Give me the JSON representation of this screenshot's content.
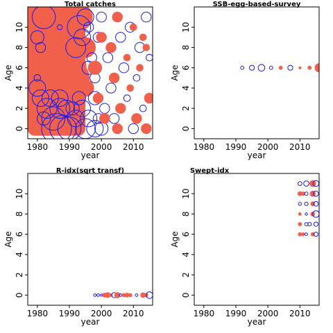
{
  "colors": {
    "positive": "#f0604a",
    "negative": "#1a1aee",
    "axis": "#000000"
  },
  "chart_data": [
    {
      "type": "bubble",
      "title": "Total catches",
      "xlabel": "year",
      "ylabel": "Age",
      "xlim": [
        1977,
        2016
      ],
      "ylim": [
        -1,
        12
      ],
      "xticks": [
        1980,
        1990,
        2000,
        2010
      ],
      "yticks": [
        0,
        2,
        4,
        6,
        8,
        10
      ],
      "points": [
        {
          "x": 1985,
          "y": 11,
          "s": 12,
          "sign": "pos"
        },
        {
          "x": 1989,
          "y": 11,
          "s": 12,
          "sign": "pos"
        },
        {
          "x": 1993,
          "y": 11,
          "s": 8,
          "sign": "pos"
        },
        {
          "x": 1981,
          "y": 7,
          "s": 12,
          "sign": "pos"
        },
        {
          "x": 1985,
          "y": 6,
          "s": 12,
          "sign": "pos"
        },
        {
          "x": 1989,
          "y": 6,
          "s": 12,
          "sign": "pos"
        },
        {
          "x": 1983,
          "y": 3,
          "s": 12,
          "sign": "pos"
        },
        {
          "x": 1987,
          "y": 4,
          "s": 12,
          "sign": "pos"
        },
        {
          "x": 1991,
          "y": 5,
          "s": 10,
          "sign": "pos"
        },
        {
          "x": 1995,
          "y": 8,
          "s": 6,
          "sign": "pos"
        },
        {
          "x": 1995,
          "y": 4,
          "s": 5,
          "sign": "pos"
        },
        {
          "x": 1982,
          "y": 11,
          "s": 7,
          "sign": "neg"
        },
        {
          "x": 1980,
          "y": 4,
          "s": 5,
          "sign": "neg"
        },
        {
          "x": 1980,
          "y": 9,
          "s": 4,
          "sign": "neg"
        },
        {
          "x": 1981,
          "y": 8,
          "s": 3,
          "sign": "neg"
        },
        {
          "x": 1980,
          "y": 5,
          "s": 2,
          "sign": "neg"
        },
        {
          "x": 1987,
          "y": 10,
          "s": 1.5,
          "sign": "neg"
        },
        {
          "x": 1981,
          "y": 3,
          "s": 5,
          "sign": "neg"
        },
        {
          "x": 1983,
          "y": 2,
          "s": 6,
          "sign": "neg"
        },
        {
          "x": 1985,
          "y": 1,
          "s": 7,
          "sign": "neg"
        },
        {
          "x": 1987,
          "y": 3,
          "s": 5,
          "sign": "neg"
        },
        {
          "x": 1982,
          "y": 1,
          "s": 4,
          "sign": "neg"
        },
        {
          "x": 1984,
          "y": 3,
          "s": 5,
          "sign": "neg"
        },
        {
          "x": 1986,
          "y": 0,
          "s": 9,
          "sign": "neg"
        },
        {
          "x": 1988,
          "y": 0,
          "s": 8,
          "sign": "neg"
        },
        {
          "x": 1990,
          "y": 0,
          "s": 7,
          "sign": "neg"
        },
        {
          "x": 1987,
          "y": 2,
          "s": 6,
          "sign": "neg"
        },
        {
          "x": 1989,
          "y": 2,
          "s": 5,
          "sign": "neg"
        },
        {
          "x": 1991,
          "y": 2,
          "s": 4,
          "sign": "neg"
        },
        {
          "x": 1992,
          "y": 1,
          "s": 5,
          "sign": "neg"
        },
        {
          "x": 1993,
          "y": 3,
          "s": 4,
          "sign": "neg"
        },
        {
          "x": 1994,
          "y": 2,
          "s": 5,
          "sign": "neg"
        },
        {
          "x": 1995,
          "y": 0,
          "s": 6,
          "sign": "neg"
        },
        {
          "x": 1996,
          "y": 1,
          "s": 5,
          "sign": "neg"
        },
        {
          "x": 1998,
          "y": 0,
          "s": 5,
          "sign": "neg"
        },
        {
          "x": 1992,
          "y": 8,
          "s": 6,
          "sign": "neg"
        },
        {
          "x": 1993,
          "y": 10,
          "s": 7,
          "sign": "neg"
        },
        {
          "x": 1994,
          "y": 9,
          "s": 5,
          "sign": "neg"
        },
        {
          "x": 1995,
          "y": 11,
          "s": 5,
          "sign": "neg"
        },
        {
          "x": 1996,
          "y": 6,
          "s": 4,
          "sign": "neg"
        },
        {
          "x": 1996,
          "y": 10,
          "s": 3,
          "sign": "neg"
        },
        {
          "x": 1997,
          "y": 7,
          "s": 3,
          "sign": "neg"
        },
        {
          "x": 1998,
          "y": 3,
          "s": 4,
          "sign": "neg"
        },
        {
          "x": 1998,
          "y": 5,
          "s": 3,
          "sign": "neg"
        },
        {
          "x": 1999,
          "y": 1,
          "s": 3,
          "sign": "neg"
        },
        {
          "x": 1999,
          "y": 9,
          "s": 3,
          "sign": "neg"
        },
        {
          "x": 2000,
          "y": 11,
          "s": 3,
          "sign": "neg"
        },
        {
          "x": 2000,
          "y": 0,
          "s": 4,
          "sign": "neg"
        },
        {
          "x": 2001,
          "y": 2,
          "s": 3,
          "sign": "neg"
        },
        {
          "x": 2002,
          "y": 7,
          "s": 3,
          "sign": "neg"
        },
        {
          "x": 2003,
          "y": 4,
          "s": 3,
          "sign": "neg"
        },
        {
          "x": 2004,
          "y": 1,
          "s": 3,
          "sign": "neg"
        },
        {
          "x": 2006,
          "y": 9,
          "s": 3,
          "sign": "neg"
        },
        {
          "x": 2007,
          "y": 6,
          "s": 3,
          "sign": "neg"
        },
        {
          "x": 2008,
          "y": 3,
          "s": 2,
          "sign": "neg"
        },
        {
          "x": 2009,
          "y": 10,
          "s": 3,
          "sign": "neg"
        },
        {
          "x": 2010,
          "y": 0,
          "s": 3,
          "sign": "neg"
        },
        {
          "x": 2011,
          "y": 5,
          "s": 2,
          "sign": "neg"
        },
        {
          "x": 2012,
          "y": 8,
          "s": 3,
          "sign": "neg"
        },
        {
          "x": 2013,
          "y": 2,
          "s": 2,
          "sign": "neg"
        },
        {
          "x": 2014,
          "y": 11,
          "s": 3,
          "sign": "neg"
        },
        {
          "x": 2015,
          "y": 7,
          "s": 2,
          "sign": "neg"
        },
        {
          "x": 1998,
          "y": 6,
          "s": 4,
          "sign": "pos"
        },
        {
          "x": 1999,
          "y": 3,
          "s": 3,
          "sign": "pos"
        },
        {
          "x": 2000,
          "y": 9,
          "s": 3,
          "sign": "pos"
        },
        {
          "x": 2001,
          "y": 1,
          "s": 3,
          "sign": "pos"
        },
        {
          "x": 2003,
          "y": 8,
          "s": 3,
          "sign": "pos"
        },
        {
          "x": 2004,
          "y": 5,
          "s": 3,
          "sign": "pos"
        },
        {
          "x": 2005,
          "y": 11,
          "s": 3,
          "sign": "pos"
        },
        {
          "x": 2005,
          "y": 0,
          "s": 3,
          "sign": "pos"
        },
        {
          "x": 2006,
          "y": 2,
          "s": 3,
          "sign": "pos"
        },
        {
          "x": 2008,
          "y": 7,
          "s": 2,
          "sign": "pos"
        },
        {
          "x": 2009,
          "y": 4,
          "s": 2,
          "sign": "pos"
        },
        {
          "x": 2010,
          "y": 10,
          "s": 2,
          "sign": "pos"
        },
        {
          "x": 2011,
          "y": 1,
          "s": 3,
          "sign": "pos"
        },
        {
          "x": 2012,
          "y": 6,
          "s": 2,
          "sign": "pos"
        },
        {
          "x": 2013,
          "y": 9,
          "s": 2,
          "sign": "pos"
        },
        {
          "x": 2014,
          "y": 0,
          "s": 3,
          "sign": "pos"
        },
        {
          "x": 2015,
          "y": 3,
          "s": 3,
          "sign": "pos"
        },
        {
          "x": 2014,
          "y": 8,
          "s": 2,
          "sign": "pos"
        }
      ]
    },
    {
      "type": "bubble",
      "title": "SSB-egg-based-survey",
      "xlabel": "year",
      "ylabel": "Age",
      "xlim": [
        1977,
        2016
      ],
      "ylim": [
        -1,
        12
      ],
      "xticks": [
        1980,
        1990,
        2000,
        2010
      ],
      "yticks": [
        0,
        2,
        4,
        6,
        8,
        10
      ],
      "points": [
        {
          "x": 1992,
          "y": 6,
          "s": 1,
          "sign": "neg"
        },
        {
          "x": 1995,
          "y": 6,
          "s": 1.5,
          "sign": "neg"
        },
        {
          "x": 1998,
          "y": 6,
          "s": 2,
          "sign": "neg"
        },
        {
          "x": 2001,
          "y": 6,
          "s": 1,
          "sign": "neg"
        },
        {
          "x": 2004,
          "y": 6,
          "s": 1,
          "sign": "pos"
        },
        {
          "x": 2007,
          "y": 6,
          "s": 1.5,
          "sign": "neg"
        },
        {
          "x": 2010,
          "y": 6,
          "s": 0.5,
          "sign": "pos"
        },
        {
          "x": 2013,
          "y": 6,
          "s": 1,
          "sign": "pos"
        },
        {
          "x": 2016,
          "y": 6,
          "s": 2.5,
          "sign": "pos"
        }
      ]
    },
    {
      "type": "bubble",
      "title": "R-idx(sqrt transf)",
      "xlabel": "year",
      "ylabel": "Age",
      "xlim": [
        1977,
        2016
      ],
      "ylim": [
        -1,
        12
      ],
      "xticks": [
        1980,
        1990,
        2000,
        2010
      ],
      "yticks": [
        0,
        2,
        4,
        6,
        8,
        10
      ],
      "points": [
        {
          "x": 1998,
          "y": 0,
          "s": 0.8,
          "sign": "neg"
        },
        {
          "x": 1999,
          "y": 0,
          "s": 0.8,
          "sign": "neg"
        },
        {
          "x": 2000,
          "y": 0,
          "s": 0.6,
          "sign": "neg"
        },
        {
          "x": 2001,
          "y": 0,
          "s": 1.2,
          "sign": "pos"
        },
        {
          "x": 2002,
          "y": 0,
          "s": 1.5,
          "sign": "pos"
        },
        {
          "x": 2003,
          "y": 0,
          "s": 0.8,
          "sign": "pos"
        },
        {
          "x": 2004,
          "y": 0,
          "s": 1.5,
          "sign": "neg"
        },
        {
          "x": 2005,
          "y": 0,
          "s": 1.6,
          "sign": "pos"
        },
        {
          "x": 2006,
          "y": 0,
          "s": 0.8,
          "sign": "neg"
        },
        {
          "x": 2007,
          "y": 0,
          "s": 1,
          "sign": "pos"
        },
        {
          "x": 2008,
          "y": 0,
          "s": 1.2,
          "sign": "pos"
        },
        {
          "x": 2009,
          "y": 0,
          "s": 1,
          "sign": "pos"
        },
        {
          "x": 2011,
          "y": 0,
          "s": 0.8,
          "sign": "neg"
        },
        {
          "x": 2013,
          "y": 0,
          "s": 1.4,
          "sign": "pos"
        },
        {
          "x": 2014,
          "y": 0,
          "s": 1,
          "sign": "pos"
        },
        {
          "x": 2015,
          "y": 0,
          "s": 2,
          "sign": "neg"
        }
      ]
    },
    {
      "type": "bubble",
      "title": "Swept-idx",
      "xlabel": "year",
      "ylabel": "Age",
      "xlim": [
        1977,
        2016
      ],
      "ylim": [
        -1,
        12
      ],
      "xticks": [
        1980,
        1990,
        2000,
        2010
      ],
      "yticks": [
        0,
        2,
        4,
        6,
        8,
        10
      ],
      "points": [
        {
          "x": 2010,
          "y": 11,
          "s": 1.2,
          "sign": "neg"
        },
        {
          "x": 2012,
          "y": 11,
          "s": 1.6,
          "sign": "neg"
        },
        {
          "x": 2014,
          "y": 11,
          "s": 1.8,
          "sign": "pos"
        },
        {
          "x": 2015,
          "y": 11,
          "s": 1.8,
          "sign": "neg"
        },
        {
          "x": 2010,
          "y": 10,
          "s": 1.2,
          "sign": "pos"
        },
        {
          "x": 2011,
          "y": 10,
          "s": 1.1,
          "sign": "pos"
        },
        {
          "x": 2012,
          "y": 10,
          "s": 1,
          "sign": "neg"
        },
        {
          "x": 2014,
          "y": 10,
          "s": 1.6,
          "sign": "pos"
        },
        {
          "x": 2015,
          "y": 10,
          "s": 1.6,
          "sign": "neg"
        },
        {
          "x": 2010,
          "y": 9,
          "s": 0.9,
          "sign": "neg"
        },
        {
          "x": 2012,
          "y": 9,
          "s": 1.1,
          "sign": "neg"
        },
        {
          "x": 2014,
          "y": 9,
          "s": 1.2,
          "sign": "pos"
        },
        {
          "x": 2015,
          "y": 9,
          "s": 1.4,
          "sign": "neg"
        },
        {
          "x": 2010,
          "y": 8,
          "s": 0.8,
          "sign": "pos"
        },
        {
          "x": 2012,
          "y": 8,
          "s": 0.7,
          "sign": "neg"
        },
        {
          "x": 2014,
          "y": 8,
          "s": 1.2,
          "sign": "pos"
        },
        {
          "x": 2015,
          "y": 8,
          "s": 2,
          "sign": "neg"
        },
        {
          "x": 2010,
          "y": 7,
          "s": 1,
          "sign": "pos"
        },
        {
          "x": 2012,
          "y": 7,
          "s": 1,
          "sign": "neg"
        },
        {
          "x": 2013,
          "y": 7,
          "s": 1.1,
          "sign": "neg"
        },
        {
          "x": 2015,
          "y": 7,
          "s": 1.3,
          "sign": "neg"
        },
        {
          "x": 2010,
          "y": 6,
          "s": 1,
          "sign": "pos"
        },
        {
          "x": 2011,
          "y": 6,
          "s": 0.9,
          "sign": "pos"
        },
        {
          "x": 2012,
          "y": 6,
          "s": 0.8,
          "sign": "neg"
        },
        {
          "x": 2014,
          "y": 6,
          "s": 1,
          "sign": "pos"
        },
        {
          "x": 2015,
          "y": 6,
          "s": 1.3,
          "sign": "neg"
        }
      ]
    }
  ]
}
